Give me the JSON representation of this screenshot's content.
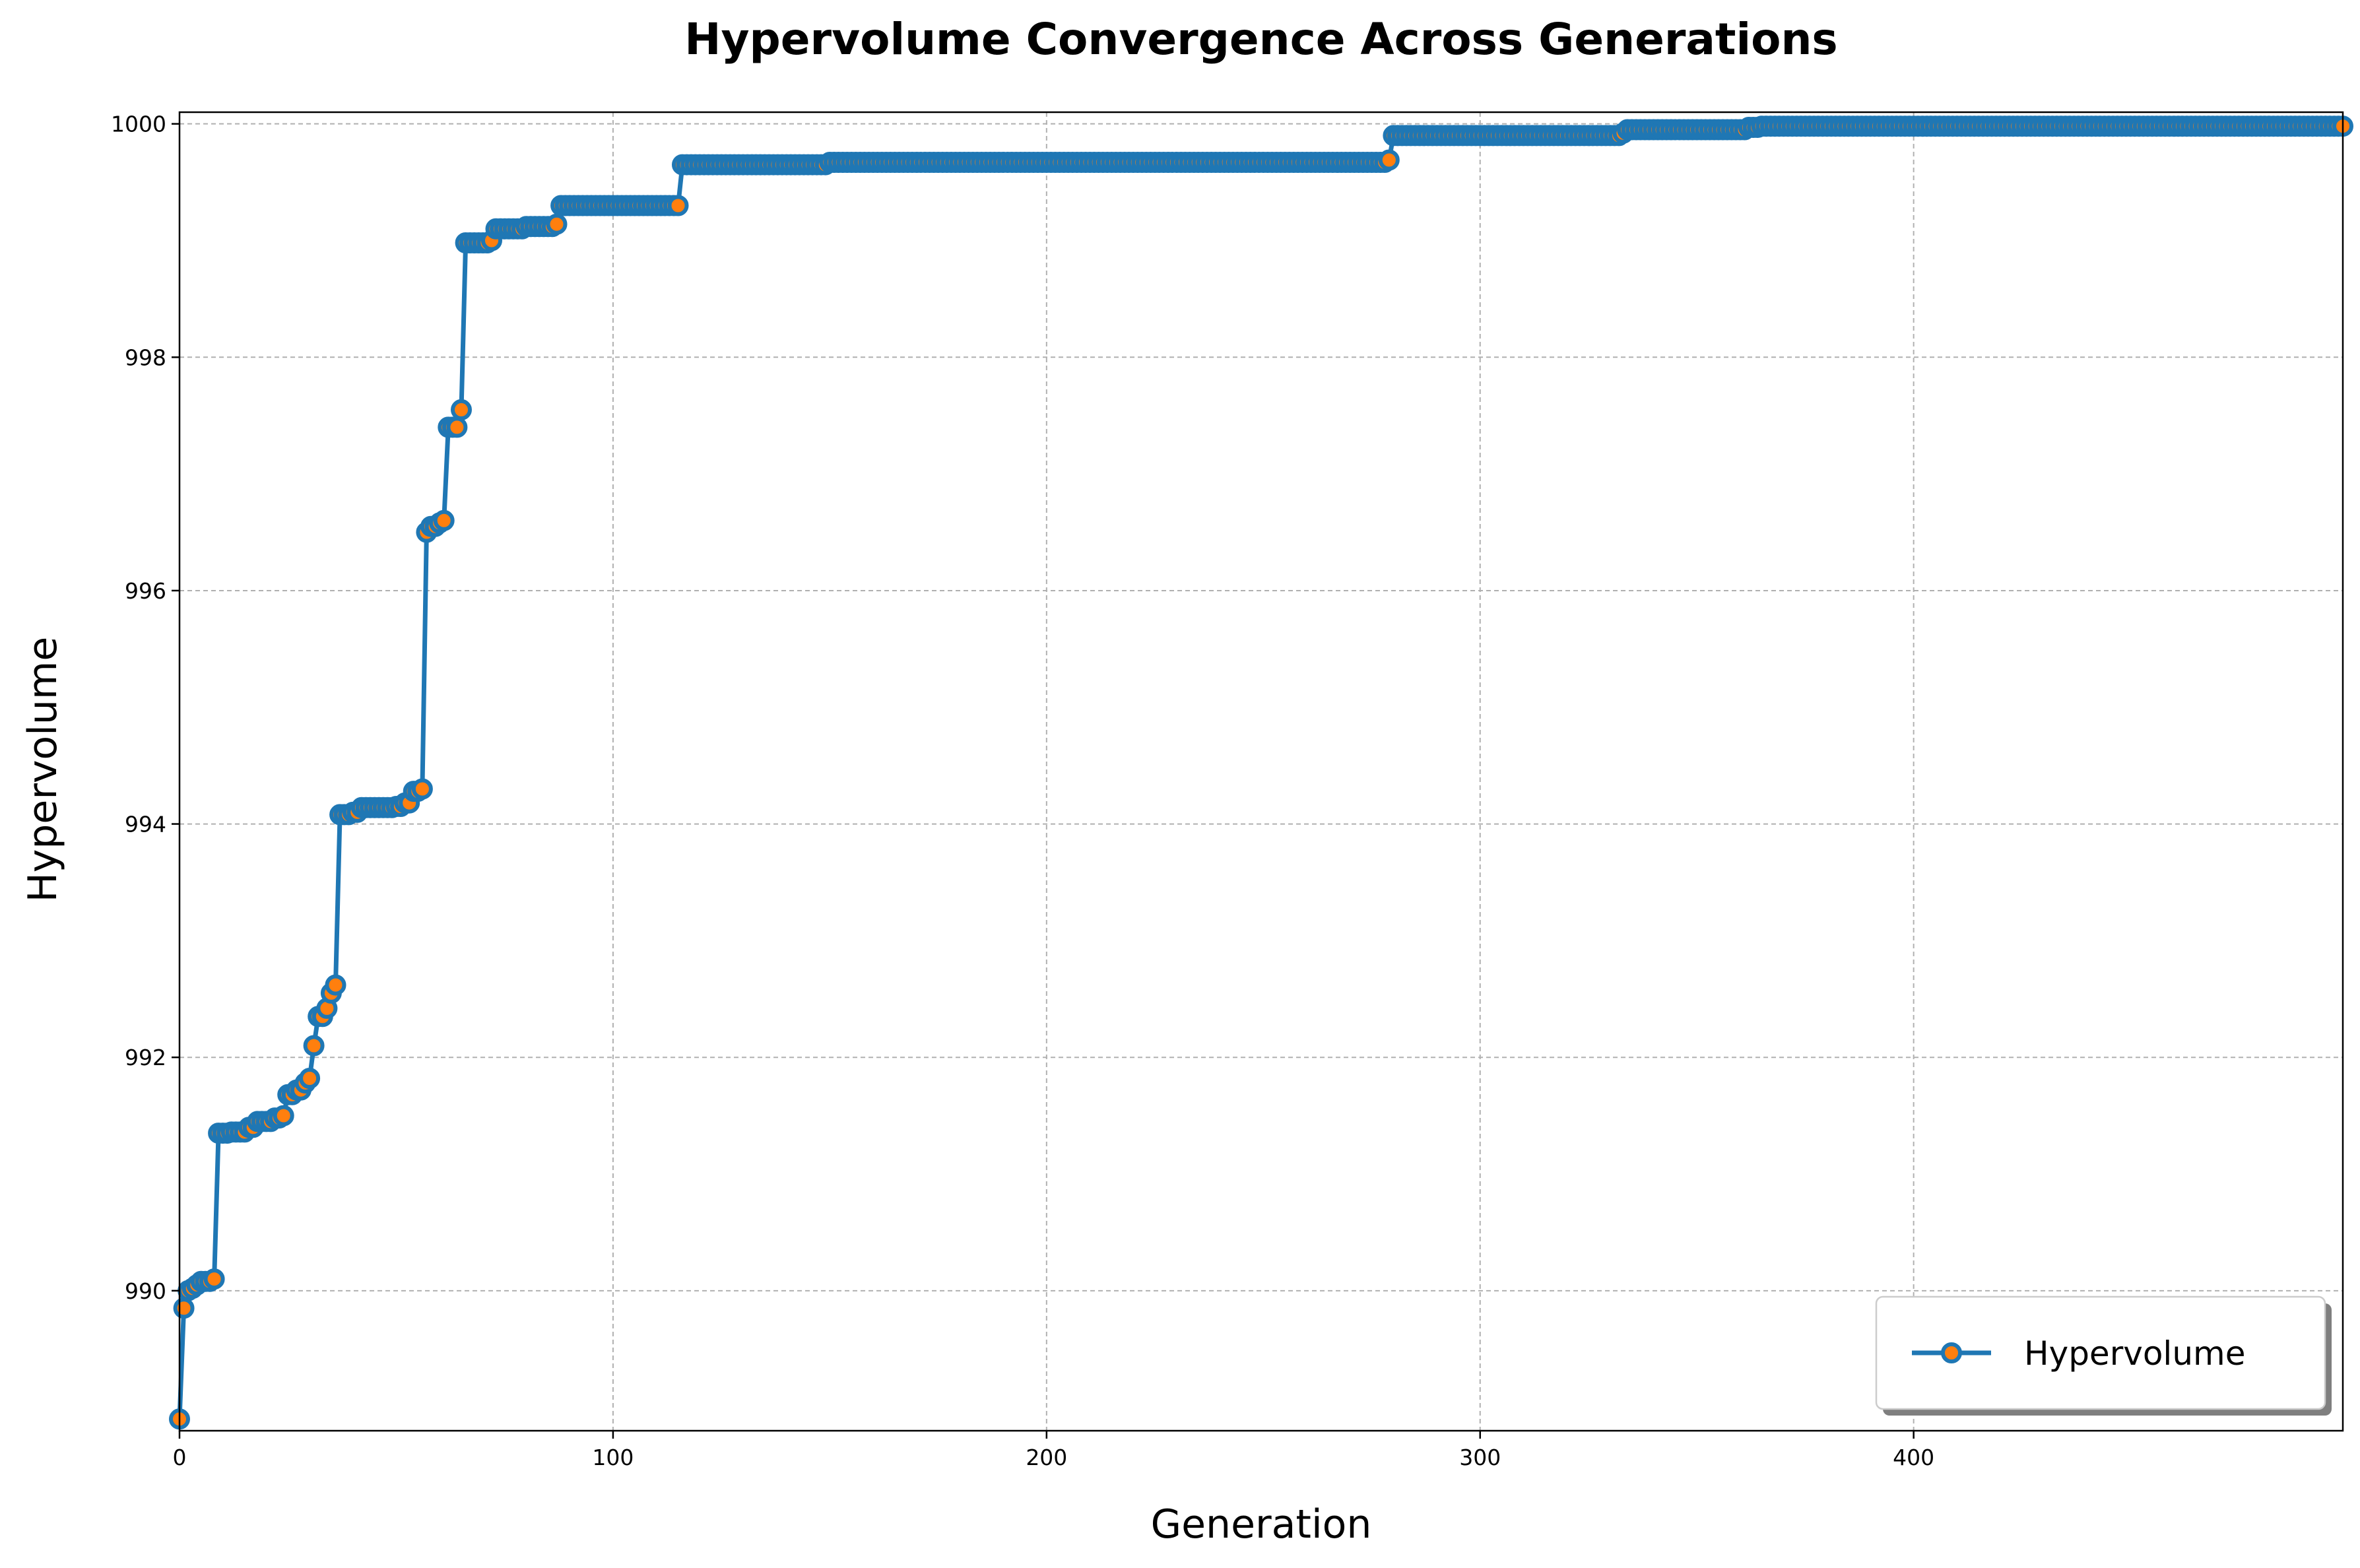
{
  "chart_data": {
    "type": "line",
    "title": "Hypervolume Convergence Across Generations",
    "xlabel": "Generation",
    "ylabel": "Hypervolume",
    "xlim": [
      0,
      499
    ],
    "ylim": [
      988.8,
      1000.1
    ],
    "x_ticks": [
      0,
      100,
      200,
      300,
      400
    ],
    "y_ticks": [
      990,
      992,
      994,
      996,
      998,
      1000
    ],
    "grid": true,
    "legend": {
      "position": "lower-right",
      "entries": [
        "Hypervolume"
      ]
    },
    "colors": {
      "line": "#1f77b4",
      "marker_face": "#ff7f0e",
      "marker_edge": "#1f77b4",
      "grid": "#b0b0b0"
    },
    "series": [
      {
        "name": "Hypervolume",
        "breakpoints": [
          [
            0,
            988.9
          ],
          [
            1,
            989.85
          ],
          [
            2,
            990.0
          ],
          [
            3,
            990.02
          ],
          [
            4,
            990.05
          ],
          [
            5,
            990.08
          ],
          [
            8,
            990.1
          ],
          [
            9,
            991.35
          ],
          [
            12,
            991.36
          ],
          [
            16,
            991.4
          ],
          [
            18,
            991.45
          ],
          [
            22,
            991.48
          ],
          [
            24,
            991.5
          ],
          [
            25,
            991.68
          ],
          [
            27,
            991.72
          ],
          [
            29,
            991.78
          ],
          [
            30,
            991.82
          ],
          [
            31,
            992.1
          ],
          [
            32,
            992.35
          ],
          [
            34,
            992.42
          ],
          [
            35,
            992.55
          ],
          [
            36,
            992.62
          ],
          [
            37,
            994.08
          ],
          [
            40,
            994.1
          ],
          [
            42,
            994.14
          ],
          [
            50,
            994.15
          ],
          [
            52,
            994.18
          ],
          [
            54,
            994.28
          ],
          [
            56,
            994.3
          ],
          [
            57,
            996.5
          ],
          [
            58,
            996.55
          ],
          [
            60,
            996.58
          ],
          [
            61,
            996.6
          ],
          [
            62,
            997.4
          ],
          [
            64,
            997.4
          ],
          [
            65,
            997.55
          ],
          [
            66,
            998.98
          ],
          [
            72,
            999.0
          ],
          [
            73,
            999.1
          ],
          [
            80,
            999.12
          ],
          [
            87,
            999.14
          ],
          [
            88,
            999.3
          ],
          [
            115,
            999.3
          ],
          [
            116,
            999.65
          ],
          [
            150,
            999.67
          ],
          [
            279,
            999.69
          ],
          [
            280,
            999.9
          ],
          [
            333,
            999.92
          ],
          [
            334,
            999.95
          ],
          [
            362,
            999.97
          ],
          [
            365,
            999.98
          ],
          [
            499,
            999.98
          ]
        ]
      }
    ]
  }
}
